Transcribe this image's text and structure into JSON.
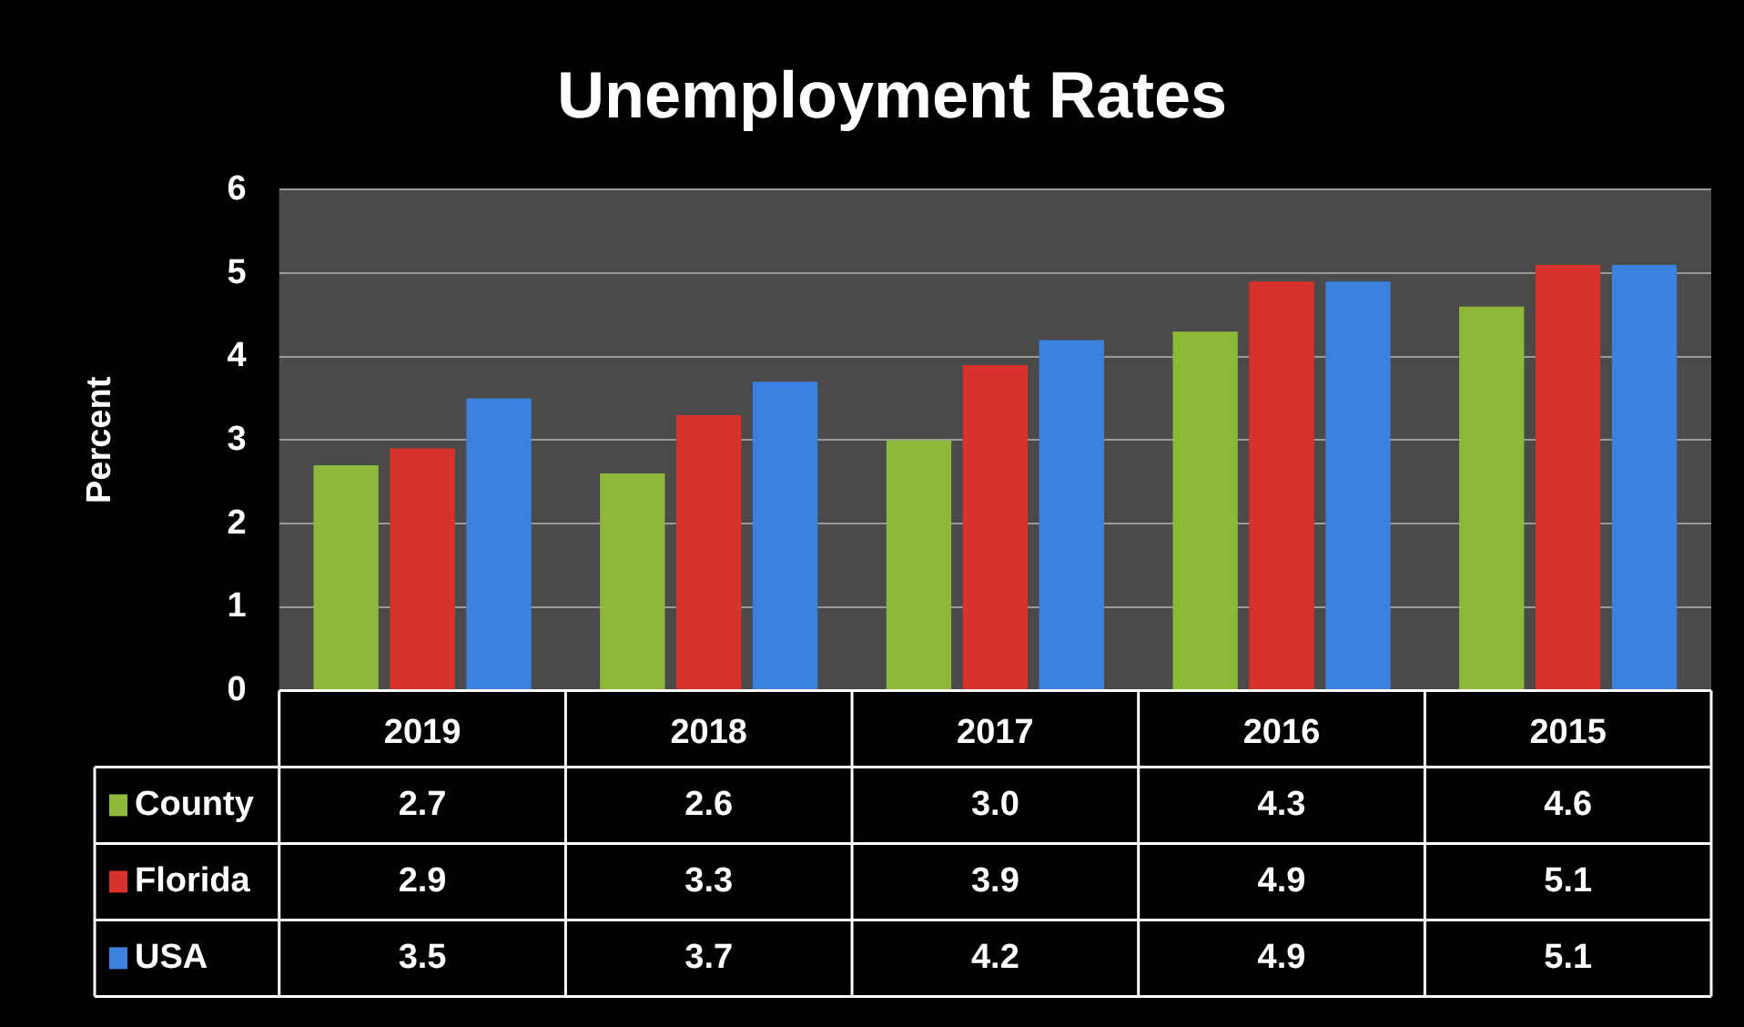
{
  "chart_data": {
    "type": "bar",
    "title": "Unemployment Rates",
    "ylabel": "Percent",
    "categories": [
      "2019",
      "2018",
      "2017",
      "2016",
      "2015"
    ],
    "series": [
      {
        "name": "County",
        "color": "#8db83a",
        "values": [
          2.7,
          2.6,
          3.0,
          4.3,
          4.6
        ],
        "value_labels": [
          "2.7",
          "2.6",
          "3.0",
          "4.3",
          "4.6"
        ]
      },
      {
        "name": "Florida",
        "color": "#d9312b",
        "values": [
          2.9,
          3.3,
          3.9,
          4.9,
          5.1
        ],
        "value_labels": [
          "2.9",
          "3.3",
          "3.9",
          "4.9",
          "5.1"
        ]
      },
      {
        "name": "USA",
        "color": "#3b82e0",
        "values": [
          3.5,
          3.7,
          4.2,
          4.9,
          5.1
        ],
        "value_labels": [
          "3.5",
          "3.7",
          "4.2",
          "4.9",
          "5.1"
        ]
      }
    ],
    "ylim": [
      0,
      6
    ],
    "yticks": [
      0,
      1,
      2,
      3,
      4,
      5,
      6
    ],
    "grid": "y",
    "legend": "bottom left"
  }
}
